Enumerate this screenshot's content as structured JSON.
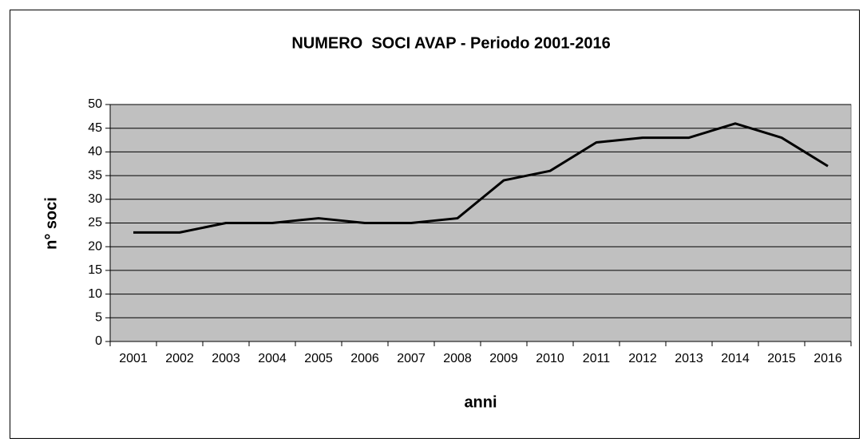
{
  "chart_data": {
    "type": "line",
    "title": "NUMERO  SOCI AVAP - Periodo 2001-2016",
    "x_label": "anni",
    "y_label": "n° soci",
    "categories": [
      "2001",
      "2002",
      "2003",
      "2004",
      "2005",
      "2006",
      "2007",
      "2008",
      "2009",
      "2010",
      "2011",
      "2012",
      "2013",
      "2014",
      "2015",
      "2016"
    ],
    "series": [
      {
        "name": "soci",
        "color": "#000000",
        "values": [
          23,
          23,
          25,
          25,
          26,
          25,
          25,
          26,
          34,
          36,
          42,
          43,
          43,
          46,
          43,
          37
        ]
      }
    ],
    "ylim": [
      0,
      50
    ],
    "yticks": [
      0,
      5,
      10,
      15,
      20,
      25,
      30,
      35,
      40,
      45,
      50
    ],
    "grid": true,
    "plot_background": "#c0c0c0"
  }
}
